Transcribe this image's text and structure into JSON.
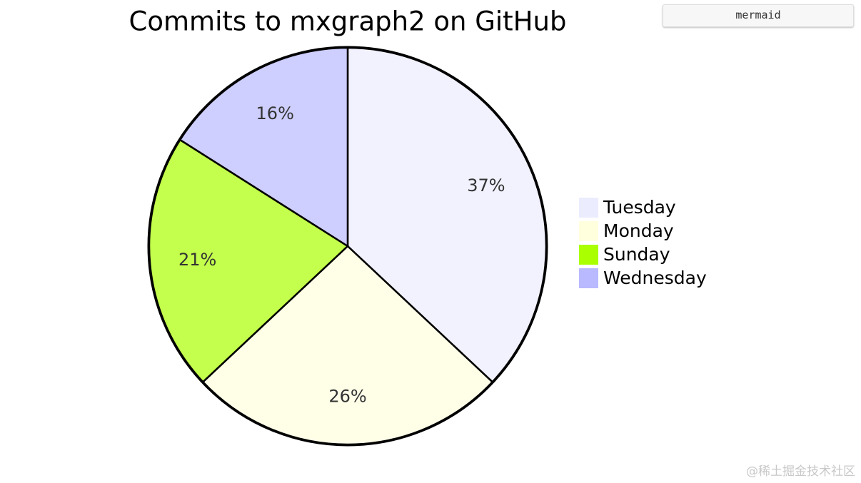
{
  "chart_data": {
    "type": "pie",
    "title": "Commits to mxgraph2 on GitHub",
    "categories": [
      "Tuesday",
      "Monday",
      "Sunday",
      "Wednesday"
    ],
    "values": [
      37,
      26,
      21,
      16
    ],
    "value_labels": [
      "37%",
      "26%",
      "21%",
      "16%"
    ],
    "colors": [
      "#ececff",
      "#ffffde",
      "#aaff00",
      "#b9b9ff"
    ],
    "legend": "right"
  },
  "badge": "mermaid",
  "watermark": "@稀土掘金技术社区"
}
